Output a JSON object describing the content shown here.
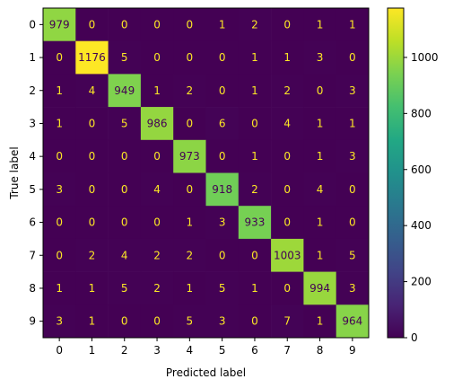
{
  "chart_data": {
    "type": "heatmap",
    "title": "",
    "xlabel": "Predicted label",
    "ylabel": "True label",
    "x_categories": [
      "0",
      "1",
      "2",
      "3",
      "4",
      "5",
      "6",
      "7",
      "8",
      "9"
    ],
    "y_categories": [
      "0",
      "1",
      "2",
      "3",
      "4",
      "5",
      "6",
      "7",
      "8",
      "9"
    ],
    "matrix": [
      [
        979,
        0,
        0,
        0,
        0,
        1,
        2,
        0,
        1,
        1
      ],
      [
        0,
        1176,
        5,
        0,
        0,
        0,
        1,
        1,
        3,
        0
      ],
      [
        1,
        4,
        949,
        1,
        2,
        0,
        1,
        2,
        0,
        3
      ],
      [
        1,
        0,
        5,
        986,
        0,
        6,
        0,
        4,
        1,
        1
      ],
      [
        0,
        0,
        0,
        0,
        973,
        0,
        1,
        0,
        1,
        3
      ],
      [
        3,
        0,
        0,
        4,
        0,
        918,
        2,
        0,
        4,
        0
      ],
      [
        0,
        0,
        0,
        0,
        1,
        3,
        933,
        0,
        1,
        0
      ],
      [
        0,
        2,
        4,
        2,
        2,
        0,
        0,
        1003,
        1,
        5
      ],
      [
        1,
        1,
        5,
        2,
        1,
        5,
        1,
        0,
        994,
        3
      ],
      [
        3,
        1,
        0,
        0,
        5,
        3,
        0,
        7,
        1,
        964
      ]
    ],
    "colormap": "viridis",
    "colorbar": {
      "min": 0,
      "max": 1176,
      "ticks": [
        0,
        200,
        400,
        600,
        800,
        1000
      ]
    },
    "grid": false
  }
}
